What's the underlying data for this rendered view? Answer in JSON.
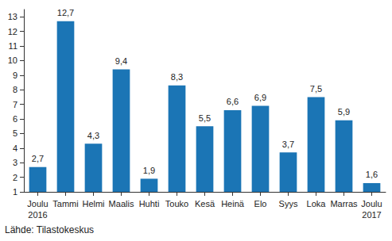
{
  "chart_data": {
    "type": "bar",
    "categories": [
      "Joulu\n2016",
      "Tammi",
      "Helmi",
      "Maalis",
      "Huhti",
      "Touko",
      "Kesä",
      "Heinä",
      "Elo",
      "Syys",
      "Loka",
      "Marras",
      "Joulu\n2017"
    ],
    "values": [
      2.7,
      12.7,
      4.3,
      9.4,
      1.9,
      8.3,
      5.5,
      6.6,
      6.9,
      3.7,
      7.5,
      5.9,
      1.6
    ],
    "value_labels": [
      "2,7",
      "12,7",
      "4,3",
      "9,4",
      "1,9",
      "8,3",
      "5,5",
      "6,6",
      "6,9",
      "3,7",
      "7,5",
      "5,9",
      "1,6"
    ],
    "data_labels": true,
    "color": "#1b75b5",
    "ylim": [
      1,
      13.5
    ],
    "yticks": [
      1,
      2,
      3,
      4,
      5,
      6,
      7,
      8,
      9,
      10,
      11,
      12,
      13
    ],
    "grid": false,
    "source": "Lähde: Tilastokeskus"
  }
}
